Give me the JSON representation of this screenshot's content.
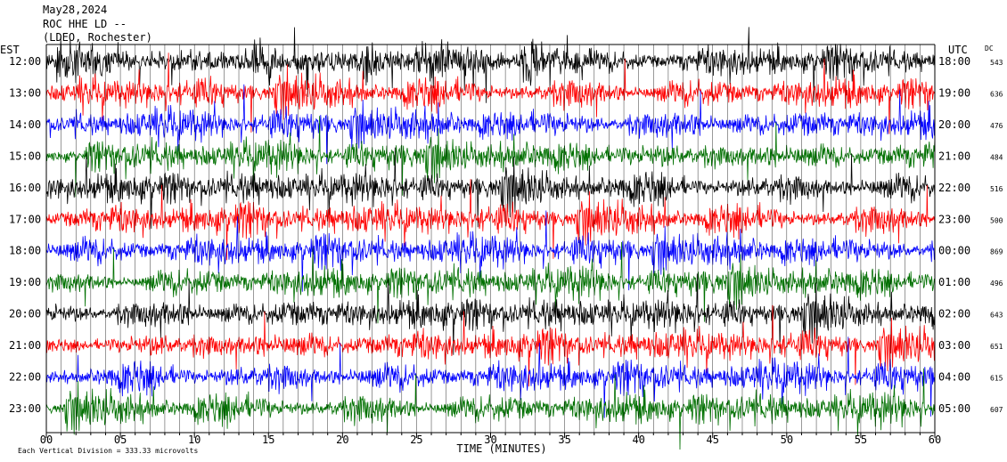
{
  "header": {
    "date": "May28,2024",
    "station": "ROC HHE LD --",
    "network": "(LDEO, Rochester)"
  },
  "chart_data": {
    "type": "line",
    "left_axis_label": "EST",
    "right_axis_label": "UTC",
    "dc_label": "DC",
    "xlabel": "TIME (MINUTES)",
    "xlim": [
      0,
      60
    ],
    "x_ticks": [
      "00",
      "05",
      "10",
      "15",
      "20",
      "25",
      "30",
      "35",
      "40",
      "45",
      "50",
      "55",
      "60"
    ],
    "footer": "Each Vertical Division =  333.33 microvolts",
    "trace_colors": [
      "#000000",
      "#ff0000",
      "#0000ff",
      "#007000"
    ],
    "rows": [
      {
        "est": "12:00",
        "utc": "18:00",
        "dc": "543"
      },
      {
        "est": "13:00",
        "utc": "19:00",
        "dc": "636"
      },
      {
        "est": "14:00",
        "utc": "20:00",
        "dc": "476"
      },
      {
        "est": "15:00",
        "utc": "21:00",
        "dc": "484"
      },
      {
        "est": "16:00",
        "utc": "22:00",
        "dc": "516"
      },
      {
        "est": "17:00",
        "utc": "23:00",
        "dc": "500"
      },
      {
        "est": "18:00",
        "utc": "00:00",
        "dc": "869"
      },
      {
        "est": "19:00",
        "utc": "01:00",
        "dc": "496"
      },
      {
        "est": "20:00",
        "utc": "02:00",
        "dc": "643"
      },
      {
        "est": "21:00",
        "utc": "03:00",
        "dc": "651"
      },
      {
        "est": "22:00",
        "utc": "04:00",
        "dc": "615"
      },
      {
        "est": "23:00",
        "utc": "05:00",
        "dc": "607"
      }
    ]
  }
}
